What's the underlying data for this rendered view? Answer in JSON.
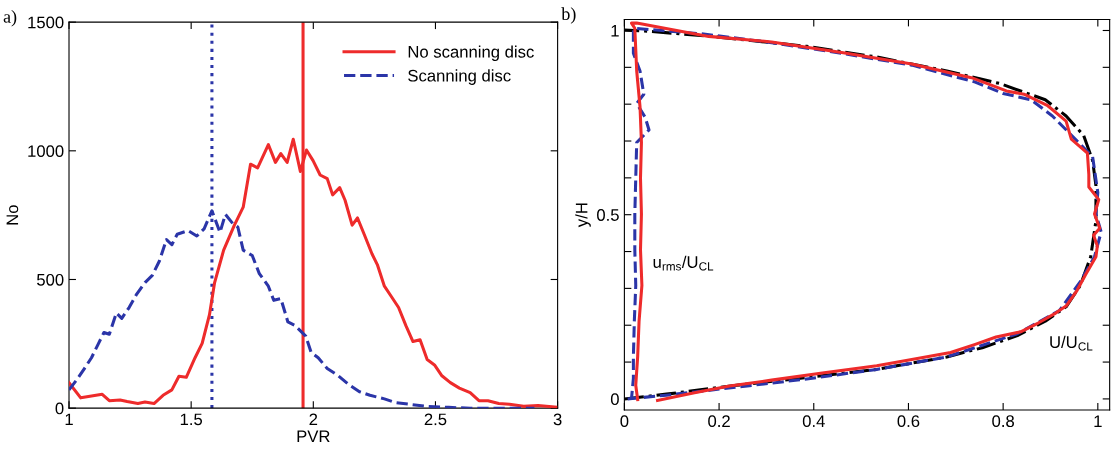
{
  "chart_data": [
    {
      "type": "line",
      "title": "a)",
      "xlabel": "PVR",
      "ylabel": "No",
      "xlim": [
        1,
        3
      ],
      "ylim": [
        0,
        1500
      ],
      "xticks": [
        1,
        1.5,
        2,
        2.5,
        3
      ],
      "yticks": [
        0,
        500,
        1000,
        1500
      ],
      "legend": "upper right",
      "grid": false,
      "series": [
        {
          "name": "No scanning disc",
          "color": "#ee2b2b",
          "line_style": "solid",
          "x": [
            1.0,
            1.048,
            1.092,
            1.136,
            1.165,
            1.209,
            1.238,
            1.282,
            1.311,
            1.348,
            1.385,
            1.421,
            1.45,
            1.48,
            1.516,
            1.545,
            1.575,
            1.596,
            1.633,
            1.677,
            1.713,
            1.743,
            1.772,
            1.816,
            1.845,
            1.867,
            1.893,
            1.918,
            1.947,
            1.972,
            1.999,
            2.028,
            2.057,
            2.079,
            2.108,
            2.13,
            2.159,
            2.181,
            2.211,
            2.24,
            2.262,
            2.291,
            2.32,
            2.349,
            2.379,
            2.408,
            2.437,
            2.466,
            2.496,
            2.525,
            2.561,
            2.598,
            2.642,
            2.678,
            2.715,
            2.759,
            2.803,
            2.861,
            2.92,
            2.993
          ],
          "values": [
            99,
            40,
            47,
            54,
            29,
            32,
            26,
            18,
            24,
            18,
            50,
            71,
            124,
            120,
            196,
            252,
            363,
            488,
            614,
            711,
            781,
            948,
            934,
            1024,
            955,
            989,
            955,
            1045,
            920,
            1003,
            962,
            906,
            892,
            829,
            857,
            808,
            711,
            739,
            669,
            600,
            558,
            474,
            433,
            391,
            321,
            259,
            266,
            189,
            168,
            127,
            99,
            78,
            60,
            29,
            29,
            18,
            15,
            7,
            10,
            4
          ]
        },
        {
          "name": "Scanning disc",
          "color": "#2b35a8",
          "line_style": "dashed",
          "x": [
            1.0,
            1.034,
            1.063,
            1.092,
            1.121,
            1.143,
            1.165,
            1.194,
            1.216,
            1.246,
            1.275,
            1.311,
            1.341,
            1.37,
            1.399,
            1.421,
            1.443,
            1.487,
            1.523,
            1.553,
            1.585,
            1.618,
            1.64,
            1.67,
            1.691,
            1.713,
            1.75,
            1.779,
            1.816,
            1.838,
            1.867,
            1.896,
            1.925,
            1.969,
            1.991,
            2.02,
            2.057,
            2.101,
            2.145,
            2.189,
            2.232,
            2.291,
            2.335,
            2.393,
            2.466,
            2.554,
            2.642,
            2.759,
            2.905
          ],
          "values": [
            71,
            113,
            154,
            196,
            252,
            294,
            287,
            370,
            349,
            391,
            440,
            488,
            516,
            572,
            655,
            635,
            676,
            690,
            669,
            697,
            767,
            683,
            753,
            718,
            704,
            614,
            593,
            523,
            474,
            419,
            426,
            335,
            321,
            280,
            217,
            196,
            154,
            127,
            92,
            64,
            50,
            36,
            22,
            15,
            7,
            3,
            0,
            0,
            0
          ]
        }
      ],
      "ref_lines": [
        {
          "axis": "x",
          "value": 1.585,
          "color": "#2b35a8",
          "line_style": "dotted"
        },
        {
          "axis": "x",
          "value": 1.958,
          "color": "#ee2b2b",
          "line_style": "solid"
        }
      ]
    },
    {
      "type": "line",
      "title": "b)",
      "ylabel": "y/H",
      "xlim": [
        0,
        1.025
      ],
      "ylim": [
        -0.03,
        1.03
      ],
      "xticks": [
        0,
        0.2,
        0.4,
        0.6,
        0.8,
        1
      ],
      "yticks": [
        0,
        {
          "value": 0.1,
          "label": null
        },
        {
          "value": 0.2,
          "label": null
        },
        {
          "value": 0.3,
          "label": null
        },
        {
          "value": 0.4,
          "label": null
        },
        0.5,
        {
          "value": 0.6,
          "label": null
        },
        {
          "value": 0.7,
          "label": null
        },
        {
          "value": 0.8,
          "label": null
        },
        {
          "value": 0.9,
          "label": null
        },
        1
      ],
      "grid": false,
      "annotations": [
        "u$_{rms}$/U$_{CL}$",
        "U/U$_{CL}$"
      ],
      "series": [
        {
          "color": "#000000",
          "line_style": "dashdot",
          "x": [
            0,
            0.089,
            0.237,
            0.385,
            0.533,
            0.681,
            0.756,
            0.83,
            0.889,
            0.933,
            0.963,
            0.985,
            0.996,
            0.996,
            0.989,
            0.97,
            0.933,
            0.889,
            0.793,
            0.681,
            0.533,
            0.385,
            0.2,
            0.052,
            0
          ],
          "values": [
            0,
            0.013,
            0.037,
            0.058,
            0.08,
            0.114,
            0.139,
            0.172,
            0.211,
            0.25,
            0.308,
            0.386,
            0.483,
            0.579,
            0.647,
            0.715,
            0.768,
            0.812,
            0.856,
            0.89,
            0.928,
            0.957,
            0.982,
            0.998,
            1.001
          ]
        },
        {
          "color": "#2b35a8",
          "line_style": "dashed",
          "x": [
            0.007,
            0.089,
            0.237,
            0.385,
            0.533,
            0.681,
            0.83,
            0.919,
            0.963,
            0.993,
            1.007,
            0.996,
            1.0,
            0.989,
            0.941,
            0.904,
            0.859,
            0.8,
            0.741,
            0.607,
            0.459,
            0.311,
            0.163,
            0.022,
            0.019,
            0.019,
            0.033,
            0.041,
            0.026,
            0.044,
            0.052,
            0.026,
            0.024,
            0.022,
            0.022,
            0.024,
            0.021,
            0.019,
            0.019,
            0.015
          ],
          "values": [
            0,
            0.01,
            0.032,
            0.054,
            0.08,
            0.114,
            0.177,
            0.24,
            0.318,
            0.386,
            0.453,
            0.502,
            0.56,
            0.657,
            0.72,
            0.768,
            0.812,
            0.829,
            0.86,
            0.906,
            0.938,
            0.967,
            0.991,
            1.006,
            0.996,
            0.938,
            0.89,
            0.827,
            0.802,
            0.764,
            0.73,
            0.696,
            0.599,
            0.502,
            0.405,
            0.308,
            0.211,
            0.114,
            0.056,
            0.0
          ]
        },
        {
          "color": "#ee2b2b",
          "line_style": "solid",
          "x": [
            0.07,
            0.148,
            0.222,
            0.311,
            0.422,
            0.533,
            0.607,
            0.689,
            0.741,
            0.785,
            0.837,
            0.874,
            0.911,
            0.933,
            0.956,
            0.974,
            0.996,
            0.999,
            0.991,
            1.004,
            0.993,
            1.002,
            0.981,
            0.981,
            0.978,
            0.944,
            0.933,
            0.893,
            0.844,
            0.807,
            0.733,
            0.607,
            0.459,
            0.311,
            0.178,
            0.026,
            0.015,
            0.022,
            0.026,
            0.033,
            0.036,
            0.034,
            0.036,
            0.034,
            0.037,
            0.031,
            0.028,
            0.024,
            0.028
          ],
          "values": [
            -0.004,
            0.017,
            0.035,
            0.051,
            0.071,
            0.09,
            0.107,
            0.126,
            0.148,
            0.168,
            0.182,
            0.206,
            0.233,
            0.252,
            0.294,
            0.337,
            0.386,
            0.415,
            0.444,
            0.463,
            0.502,
            0.541,
            0.575,
            0.609,
            0.667,
            0.705,
            0.754,
            0.797,
            0.827,
            0.836,
            0.872,
            0.909,
            0.94,
            0.969,
            0.984,
            1.02,
            1.02,
            1.006,
            0.89,
            0.793,
            0.696,
            0.599,
            0.502,
            0.405,
            0.308,
            0.211,
            0.114,
            0.037,
            -0.002
          ]
        }
      ]
    }
  ]
}
